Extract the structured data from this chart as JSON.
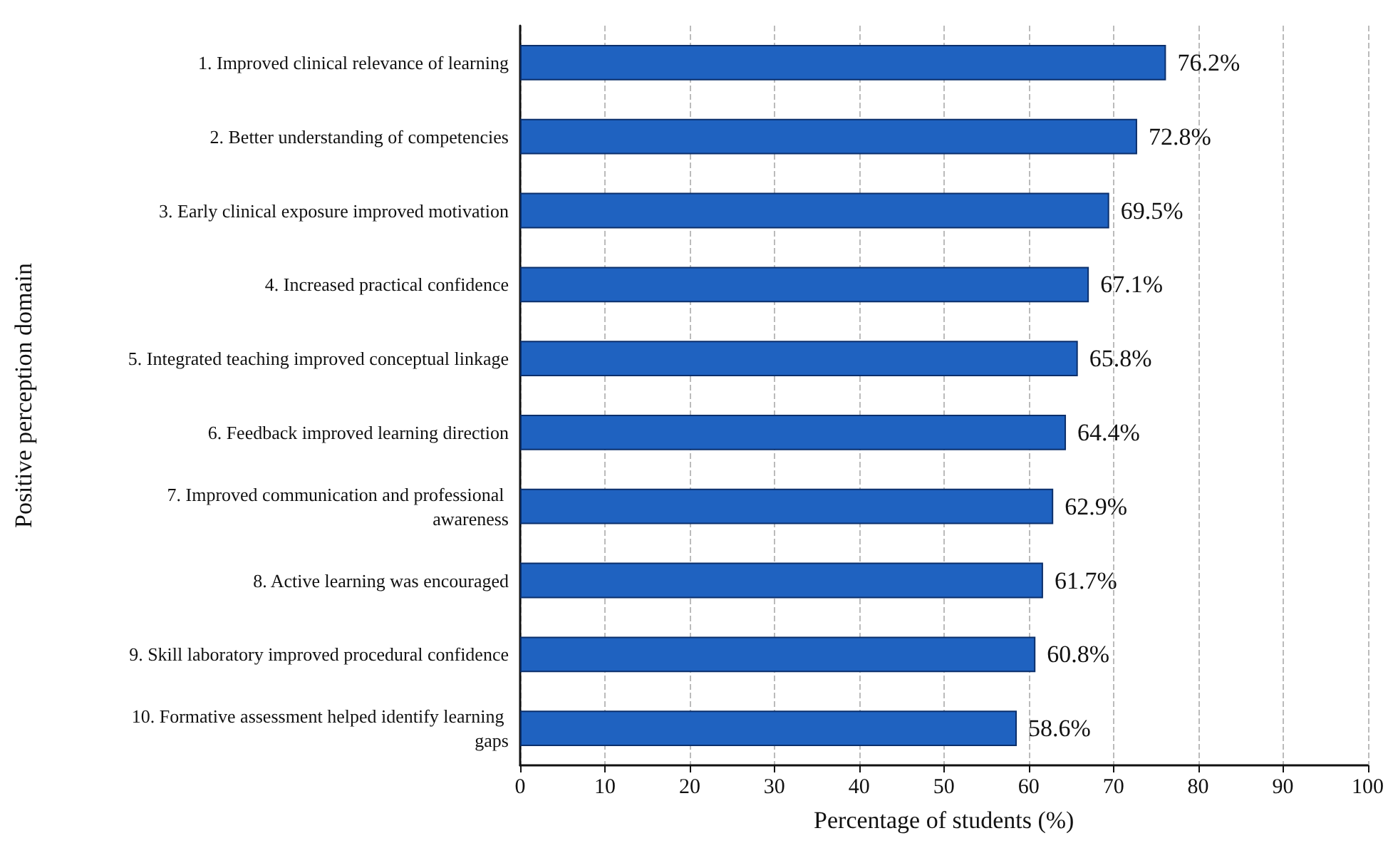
{
  "chart_data": {
    "type": "bar",
    "orientation": "horizontal",
    "xlabel": "Percentage of students (%)",
    "ylabel": "Positive perception domain",
    "categories": [
      "1. Improved clinical relevance of learning",
      "2. Better understanding of competencies",
      "3. Early clinical exposure improved motivation",
      "4. Increased practical confidence",
      "5. Integrated teaching improved conceptual linkage",
      "6. Feedback improved learning direction",
      "7. Improved communication and professional awareness",
      "8. Active learning was encouraged",
      "9. Skill laboratory improved procedural confidence",
      "10. Formative assessment helped identify learning gaps"
    ],
    "values": [
      76.2,
      72.8,
      69.5,
      67.1,
      65.8,
      64.4,
      62.9,
      61.7,
      60.8,
      58.6
    ],
    "value_labels": [
      "76.2%",
      "72.8%",
      "69.5%",
      "67.1%",
      "65.8%",
      "64.4%",
      "62.9%",
      "61.7%",
      "60.8%",
      "58.6%"
    ],
    "color": "#1f62c0",
    "xlim": [
      0,
      100
    ],
    "xticks": [
      0,
      10,
      20,
      30,
      40,
      50,
      60,
      70,
      80,
      90,
      100
    ],
    "grid": "x"
  }
}
